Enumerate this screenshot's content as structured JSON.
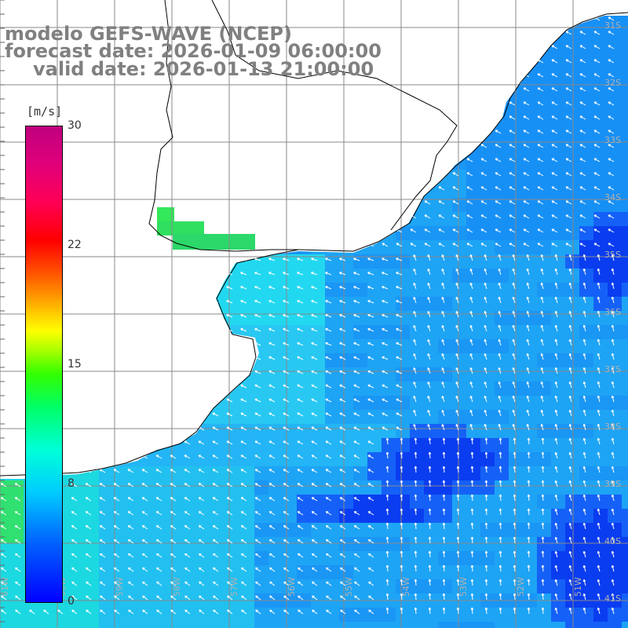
{
  "title": {
    "line1": "modelo GEFS-WAVE (NCEP)",
    "line2": "forecast date: 2026-01-09 06:00:00",
    "line3": "valid date: 2026-01-13 21:00:00"
  },
  "colorbar": {
    "unit": "[m/s]",
    "ticks": [
      "0",
      "8",
      "15",
      "22",
      "30"
    ],
    "colors": [
      "#0000ff",
      "#00ccff",
      "#00ff66",
      "#ffff00",
      "#ff0000",
      "#c0007f"
    ]
  },
  "lat_labels": [
    "31S",
    "32S",
    "33S",
    "34S",
    "35S",
    "36S",
    "37S",
    "38S",
    "39S",
    "40S",
    "41S"
  ],
  "lon_labels": [
    "61W",
    "60W",
    "59W",
    "58W",
    "57W",
    "56W",
    "55W",
    "54W",
    "53W",
    "52W",
    "51W"
  ],
  "map_style": {
    "land": "#ffffff",
    "grid": "#888888",
    "coast": "#000000",
    "arrows": "#ffffff"
  }
}
